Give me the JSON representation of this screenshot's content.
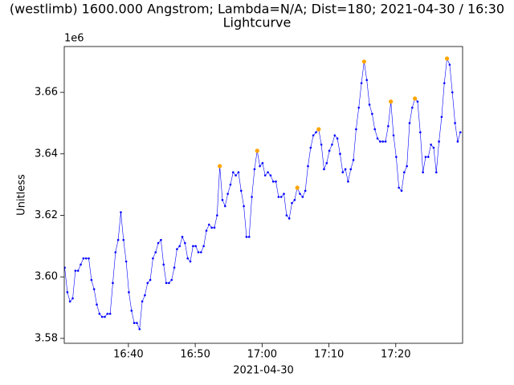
{
  "chart_data": {
    "type": "line",
    "title": "(westlimb) 1600.000 Angstrom; Lambda=N/A; Dist=180; 2021-04-30 / 16:30",
    "subtitle": "Lightcurve",
    "x_label": "2021-04-30",
    "y_label": "Unitless",
    "y_offset_label": "1e6",
    "xlim": [
      "16:30:24",
      "17:30:00"
    ],
    "xticks": [
      "16:40",
      "16:50",
      "17:00",
      "17:10",
      "17:20"
    ],
    "ylim": [
      3.5784,
      3.6749
    ],
    "yticks": [
      3.58,
      {
        "value": 3.6,
        "label": "3.60"
      },
      3.62,
      3.64,
      3.66
    ],
    "series": [
      {
        "color": "#0000ff",
        "x": [
          "16:30:28",
          "16:30:52",
          "16:31:16",
          "16:31:40",
          "16:32:04",
          "16:32:28",
          "16:32:52",
          "16:33:16",
          "16:33:40",
          "16:34:04",
          "16:34:28",
          "16:34:52",
          "16:35:16",
          "16:35:40",
          "16:36:04",
          "16:36:28",
          "16:36:52",
          "16:37:16",
          "16:37:40",
          "16:38:04",
          "16:38:28",
          "16:38:52",
          "16:39:16",
          "16:39:40",
          "16:40:04",
          "16:40:28",
          "16:40:52",
          "16:41:16",
          "16:41:40",
          "16:42:04",
          "16:42:28",
          "16:42:52",
          "16:43:16",
          "16:43:40",
          "16:44:04",
          "16:44:28",
          "16:44:52",
          "16:45:16",
          "16:45:40",
          "16:46:04",
          "16:46:28",
          "16:46:52",
          "16:47:16",
          "16:47:40",
          "16:48:04",
          "16:48:28",
          "16:48:52",
          "16:49:16",
          "16:49:40",
          "16:50:04",
          "16:50:28",
          "16:50:52",
          "16:51:16",
          "16:51:40",
          "16:52:04",
          "16:52:28",
          "16:52:52",
          "16:53:16",
          "16:53:40",
          "16:54:04",
          "16:54:28",
          "16:54:52",
          "16:55:16",
          "16:55:40",
          "16:56:04",
          "16:56:28",
          "16:56:52",
          "16:57:16",
          "16:57:40",
          "16:58:04",
          "16:58:28",
          "16:58:52",
          "16:59:16",
          "16:59:40",
          "17:00:04",
          "17:00:28",
          "17:00:52",
          "17:01:16",
          "17:01:40",
          "17:02:04",
          "17:02:28",
          "17:02:52",
          "17:03:16",
          "17:03:40",
          "17:04:04",
          "17:04:28",
          "17:04:52",
          "17:05:16",
          "17:05:40",
          "17:06:04",
          "17:06:28",
          "17:06:52",
          "17:07:16",
          "17:07:40",
          "17:08:04",
          "17:08:28",
          "17:08:52",
          "17:09:16",
          "17:09:40",
          "17:10:04",
          "17:10:28",
          "17:10:52",
          "17:11:16",
          "17:11:40",
          "17:12:04",
          "17:12:28",
          "17:12:52",
          "17:13:16",
          "17:13:40",
          "17:14:04",
          "17:14:28",
          "17:14:52",
          "17:15:16",
          "17:15:40",
          "17:16:04",
          "17:16:28",
          "17:16:52",
          "17:17:16",
          "17:17:40",
          "17:18:04",
          "17:18:28",
          "17:18:52",
          "17:19:16",
          "17:19:40",
          "17:20:04",
          "17:20:28",
          "17:20:52",
          "17:21:16",
          "17:21:40",
          "17:22:04",
          "17:22:28",
          "17:22:52",
          "17:23:16",
          "17:23:40",
          "17:24:04",
          "17:24:28",
          "17:24:52",
          "17:25:16",
          "17:25:40",
          "17:26:04",
          "17:26:28",
          "17:26:52",
          "17:27:16",
          "17:27:40",
          "17:28:04",
          "17:28:28",
          "17:28:52",
          "17:29:16",
          "17:29:40"
        ],
        "values": [
          3.603,
          3.595,
          3.592,
          3.593,
          3.602,
          3.602,
          3.604,
          3.606,
          3.606,
          3.606,
          3.599,
          3.596,
          3.591,
          3.588,
          3.587,
          3.587,
          3.588,
          3.588,
          3.598,
          3.608,
          3.612,
          3.621,
          3.612,
          3.605,
          3.595,
          3.589,
          3.585,
          3.585,
          3.583,
          3.592,
          3.594,
          3.598,
          3.599,
          3.606,
          3.608,
          3.611,
          3.612,
          3.604,
          3.598,
          3.598,
          3.599,
          3.603,
          3.609,
          3.61,
          3.613,
          3.611,
          3.606,
          3.605,
          3.61,
          3.61,
          3.608,
          3.608,
          3.61,
          3.615,
          3.617,
          3.616,
          3.616,
          3.62,
          3.636,
          3.625,
          3.623,
          3.627,
          3.63,
          3.634,
          3.633,
          3.634,
          3.628,
          3.623,
          3.613,
          3.613,
          3.626,
          3.635,
          3.641,
          3.636,
          3.637,
          3.633,
          3.634,
          3.633,
          3.631,
          3.631,
          3.626,
          3.626,
          3.627,
          3.62,
          3.619,
          3.624,
          3.625,
          3.629,
          3.627,
          3.626,
          3.628,
          3.636,
          3.642,
          3.646,
          3.647,
          3.648,
          3.643,
          3.635,
          3.637,
          3.641,
          3.643,
          3.646,
          3.645,
          3.64,
          3.634,
          3.635,
          3.631,
          3.635,
          3.638,
          3.648,
          3.655,
          3.663,
          3.67,
          3.664,
          3.656,
          3.653,
          3.648,
          3.645,
          3.644,
          3.644,
          3.644,
          3.649,
          3.657,
          3.646,
          3.639,
          3.629,
          3.628,
          3.634,
          3.636,
          3.65,
          3.655,
          3.658,
          3.657,
          3.647,
          3.634,
          3.639,
          3.639,
          3.643,
          3.642,
          3.634,
          3.644,
          3.652,
          3.663,
          3.671,
          3.669,
          3.66,
          3.65,
          3.644,
          3.647
        ]
      },
      {
        "color": "#ffa500",
        "x": [
          "16:53:40",
          "16:59:16",
          "17:05:16",
          "17:08:28",
          "17:15:16",
          "17:19:16",
          "17:22:52",
          "17:27:40"
        ],
        "values": [
          3.636,
          3.641,
          3.629,
          3.648,
          3.67,
          3.657,
          3.658,
          3.671
        ]
      }
    ]
  }
}
